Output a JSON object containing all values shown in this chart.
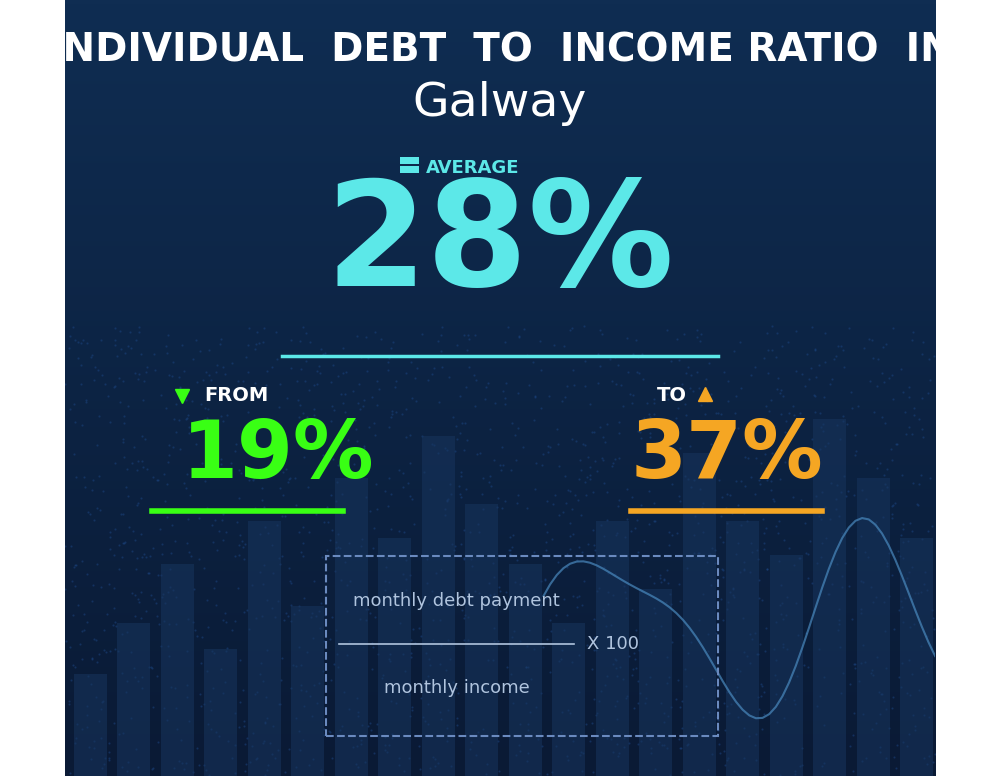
{
  "title_line1": "INDIVIDUAL  DEBT  TO  INCOME RATIO  IN",
  "title_line2": "Galway",
  "bg_color_top": "#0d2a4e",
  "bg_color_bottom": "#0a1e38",
  "average_label": "AVERAGE",
  "average_value": "28%",
  "average_color": "#5ce8e8",
  "from_label": "FROM",
  "from_value": "19%",
  "from_color": "#39ff14",
  "to_label": "TO",
  "to_value": "37%",
  "to_color": "#f5a623",
  "title_color": "#ffffff",
  "subtitle_color": "#ffffff",
  "formula_numerator": "monthly debt payment",
  "formula_denominator": "monthly income",
  "formula_multiplier": "X 100",
  "formula_text_color": "#b0c4de",
  "divider_color": "#5ce8e8",
  "green_underline_color": "#39ff14",
  "gold_underline_color": "#f5a623",
  "bar_color": "#1a3a6e",
  "grid_dot_color": "#1e4080",
  "line_chart_color": "#4a8abf",
  "icon_color_avg": "#5ce8e8",
  "icon_color_from": "#39ff14",
  "icon_color_to": "#f5a623"
}
